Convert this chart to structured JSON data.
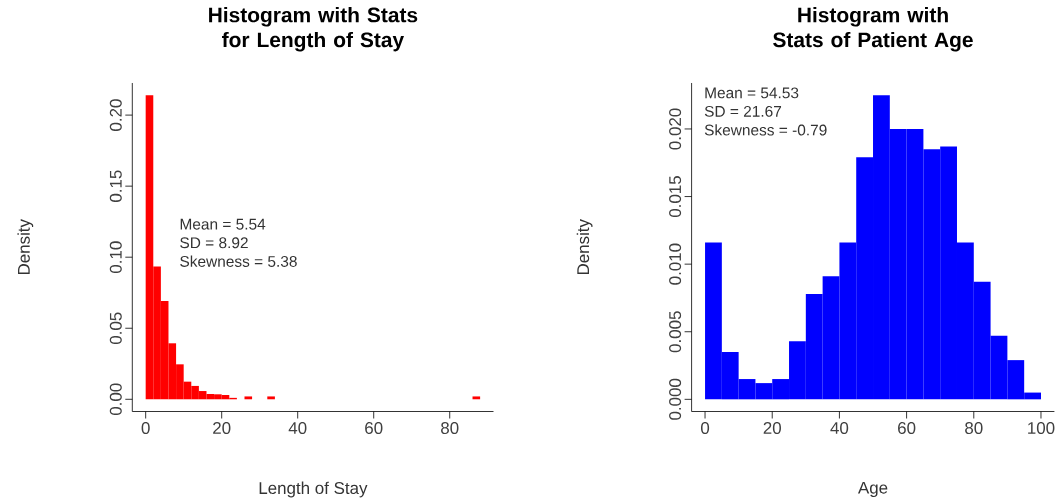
{
  "chart_data": [
    {
      "type": "histogram",
      "title": "Histogram with Stats for Length of Stay",
      "xlabel": "Length of Stay",
      "ylabel": "Density",
      "color": "#ff0000",
      "bins": [
        0,
        2,
        4,
        6,
        8,
        10,
        12,
        14,
        16,
        18,
        20,
        22,
        24,
        26,
        28,
        30,
        32,
        34,
        36,
        38,
        40,
        42,
        44,
        46,
        48,
        50,
        52,
        54,
        56,
        58,
        60,
        62,
        64,
        66,
        68,
        70,
        72,
        74,
        76,
        78,
        80,
        82,
        84,
        86,
        88
      ],
      "values": [
        0.214,
        0.0934,
        0.0692,
        0.0394,
        0.0246,
        0.0124,
        0.0094,
        0.0058,
        0.0037,
        0.0035,
        0.003,
        0.001,
        0,
        0.002,
        0,
        0,
        0.002,
        0,
        0,
        0,
        0,
        0,
        0,
        0,
        0,
        0,
        0,
        0,
        0,
        0,
        0,
        0,
        0,
        0,
        0,
        0,
        0,
        0,
        0,
        0,
        0,
        0,
        0,
        0.002
      ],
      "annotations": [
        "Mean = 5.54",
        "SD = 8.92",
        "Skewness = 5.38"
      ],
      "xlim": [
        -3.52,
        91.52
      ],
      "ylim": [
        -0.0086,
        0.2226
      ],
      "xticks": [
        0,
        20,
        40,
        60,
        80
      ],
      "yticks": [
        {
          "value": 0,
          "label": "0.00"
        },
        {
          "value": 0.05,
          "label": "0.05"
        },
        {
          "value": 0.1,
          "label": "0.10"
        },
        {
          "value": 0.15,
          "label": "0.15"
        },
        {
          "value": 0.2,
          "label": "0.20"
        }
      ]
    },
    {
      "type": "histogram",
      "title": "Histogram with Stats of Patient Age",
      "xlabel": "Age",
      "ylabel": "Density",
      "color": "#0000ff",
      "bins": [
        0,
        5,
        10,
        15,
        20,
        25,
        30,
        35,
        40,
        45,
        50,
        55,
        60,
        65,
        70,
        75,
        80,
        85,
        90,
        95,
        100
      ],
      "values": [
        0.0116,
        0.0035,
        0.0015,
        0.0012,
        0.0015,
        0.0043,
        0.0078,
        0.0091,
        0.0116,
        0.0179,
        0.0225,
        0.02,
        0.02,
        0.0185,
        0.0187,
        0.0116,
        0.0087,
        0.0047,
        0.0029,
        0.0005
      ],
      "annotations": [
        "Mean = 54.53",
        "SD = 21.67",
        "Skewness = -0.79"
      ],
      "xlim": [
        -4,
        104
      ],
      "ylim": [
        -0.0009,
        0.0234
      ],
      "xticks": [
        0,
        20,
        40,
        60,
        80,
        100
      ],
      "yticks": [
        {
          "value": 0,
          "label": "0.000"
        },
        {
          "value": 0.005,
          "label": "0.005"
        },
        {
          "value": 0.01,
          "label": "0.010"
        },
        {
          "value": 0.015,
          "label": "0.015"
        },
        {
          "value": 0.02,
          "label": "0.020"
        }
      ]
    }
  ]
}
